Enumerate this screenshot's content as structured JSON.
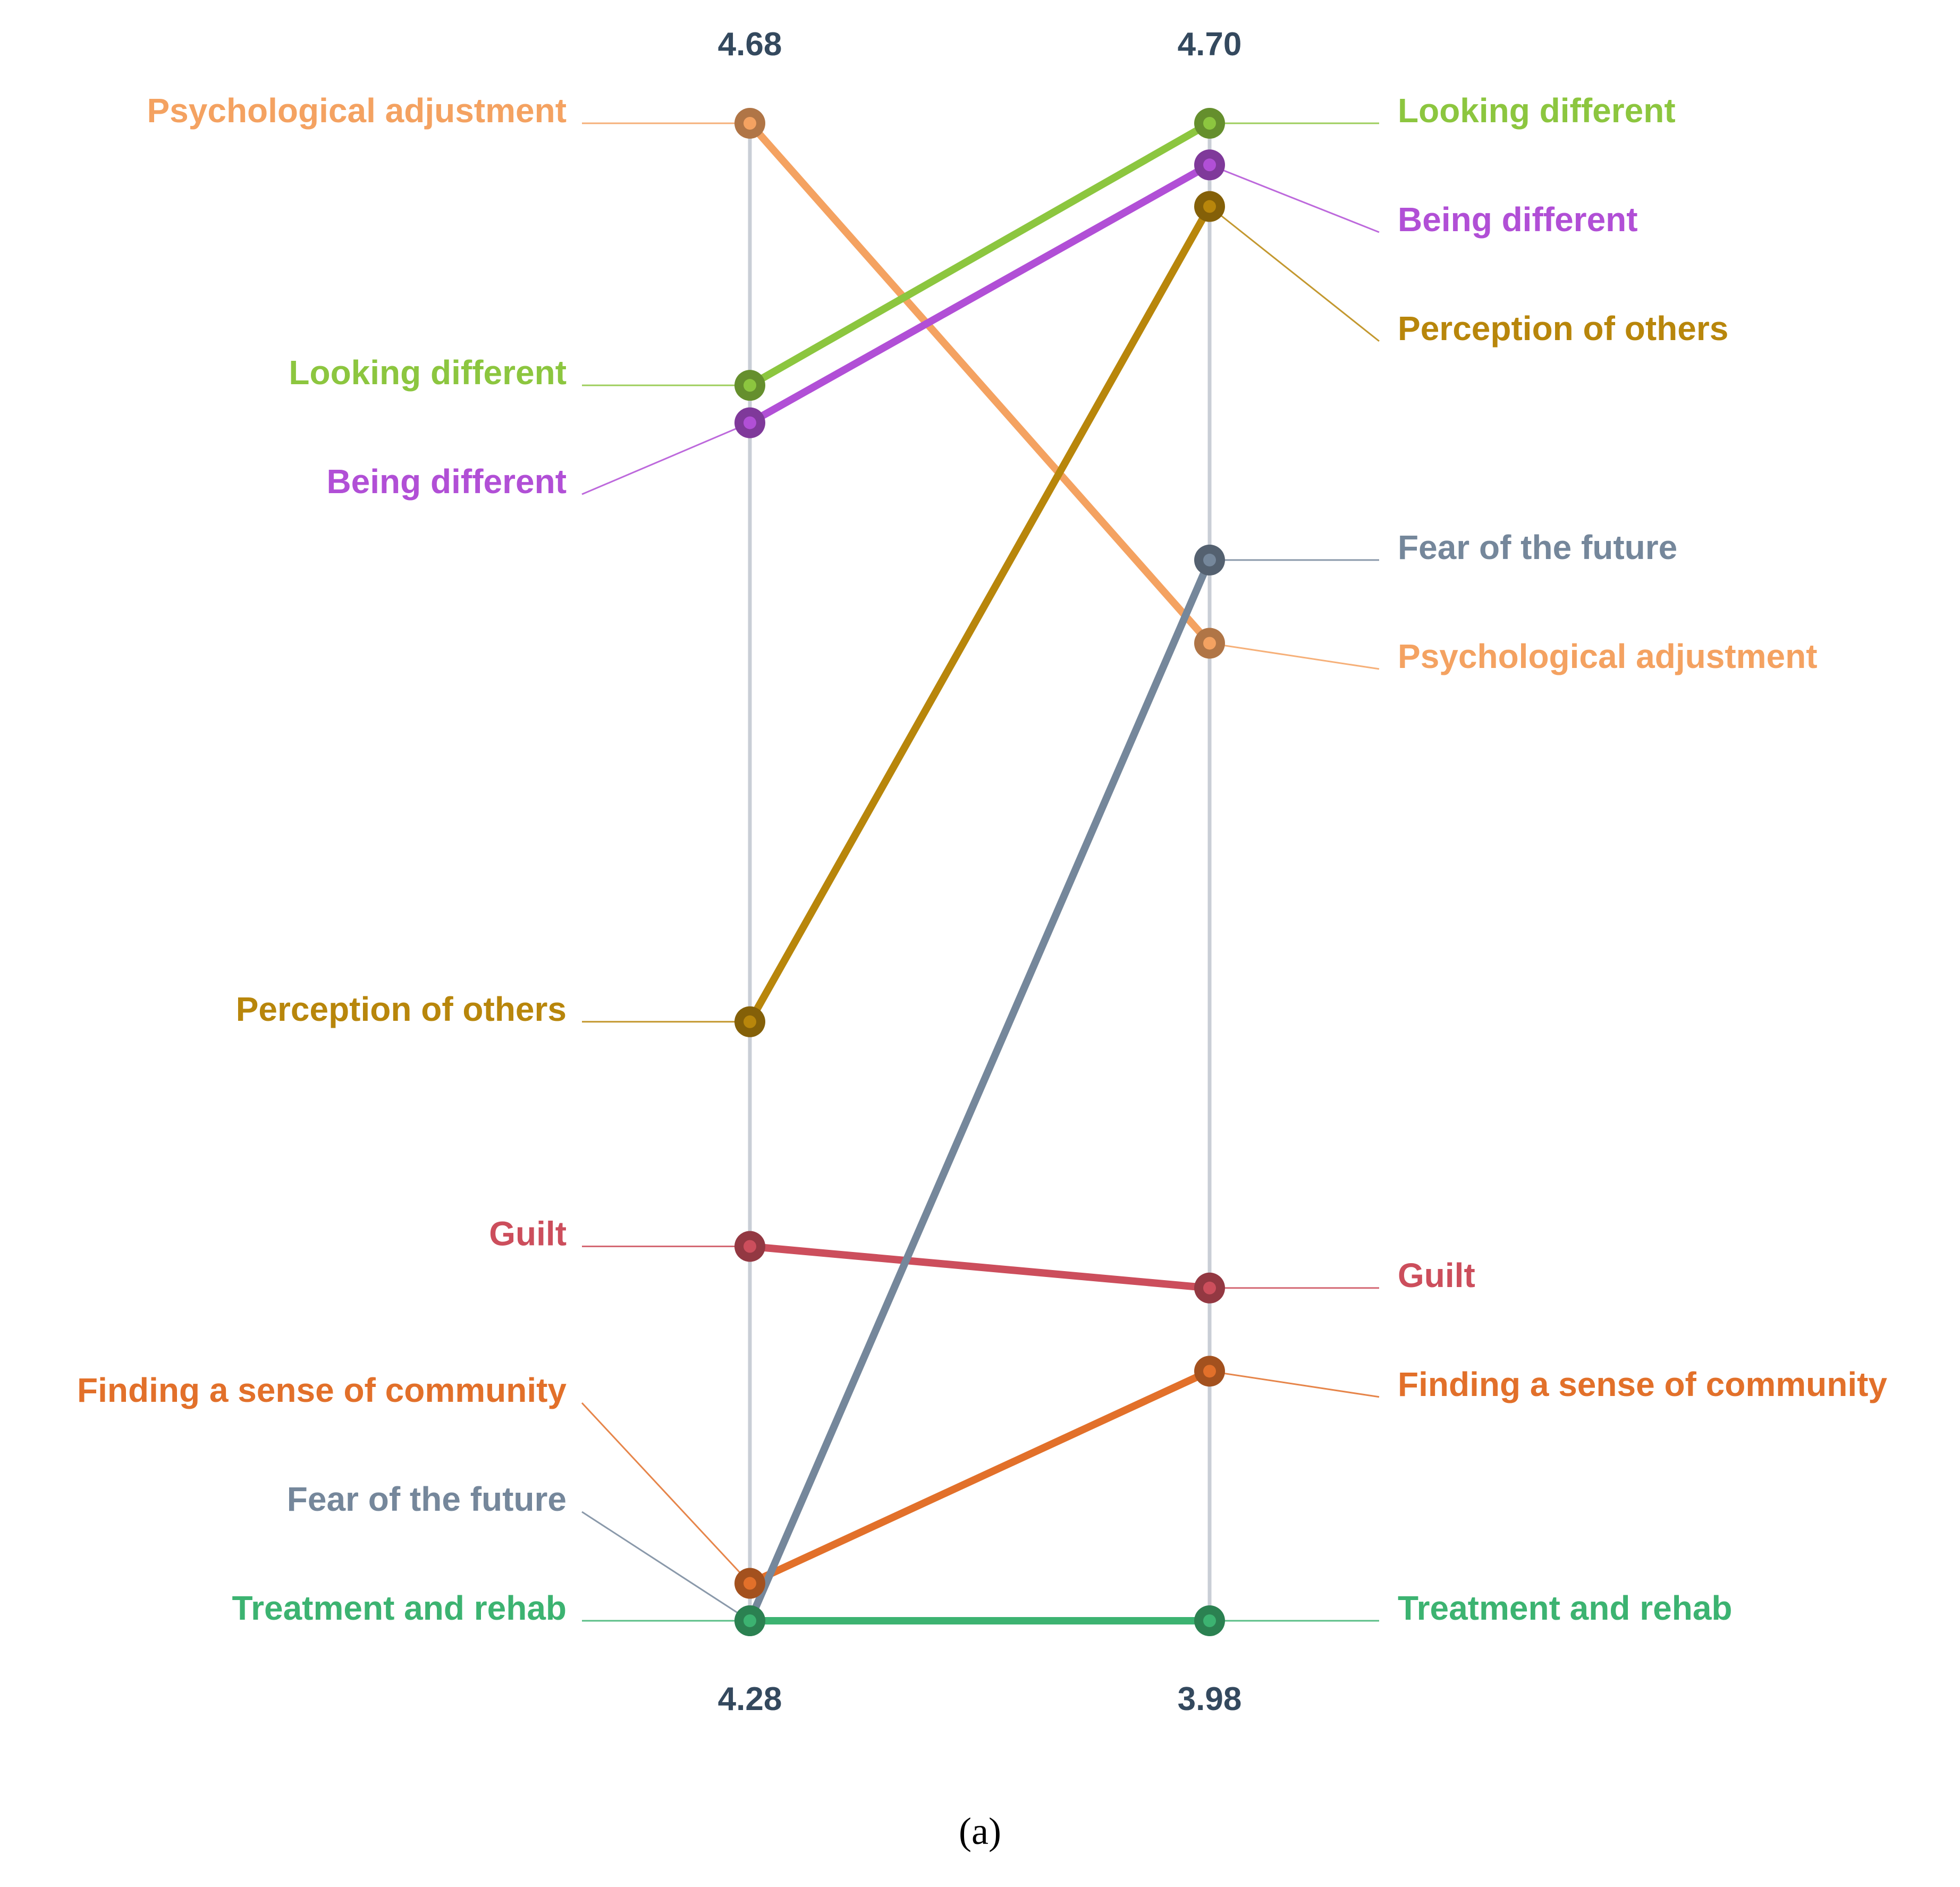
{
  "chart_data": {
    "type": "slope",
    "caption": "(a)",
    "columns": [
      {
        "top_value": "4.68",
        "bottom_value": "4.28",
        "max": 4.68,
        "min": 4.28
      },
      {
        "top_value": "4.70",
        "bottom_value": "3.98",
        "max": 4.7,
        "min": 3.98
      }
    ],
    "series": [
      {
        "name": "Psychological adjustment",
        "color": "#f4a261",
        "values": [
          4.68,
          4.45
        ]
      },
      {
        "name": "Looking different",
        "color": "#8cc63f",
        "values": [
          4.61,
          4.7
        ]
      },
      {
        "name": "Being different",
        "color": "#b14fd6",
        "values": [
          4.6,
          4.68
        ]
      },
      {
        "name": "Perception of others",
        "color": "#b8860b",
        "values": [
          4.44,
          4.66
        ]
      },
      {
        "name": "Guilt",
        "color": "#cc4e5c",
        "values": [
          4.38,
          4.14
        ]
      },
      {
        "name": "Finding a sense of community",
        "color": "#e2702a",
        "values": [
          4.29,
          4.1
        ]
      },
      {
        "name": "Fear of the future",
        "color": "#75879b",
        "values": [
          4.28,
          4.49
        ]
      },
      {
        "name": "Treatment and rehab",
        "color": "#3cb371",
        "values": [
          4.28,
          3.98
        ]
      }
    ]
  }
}
